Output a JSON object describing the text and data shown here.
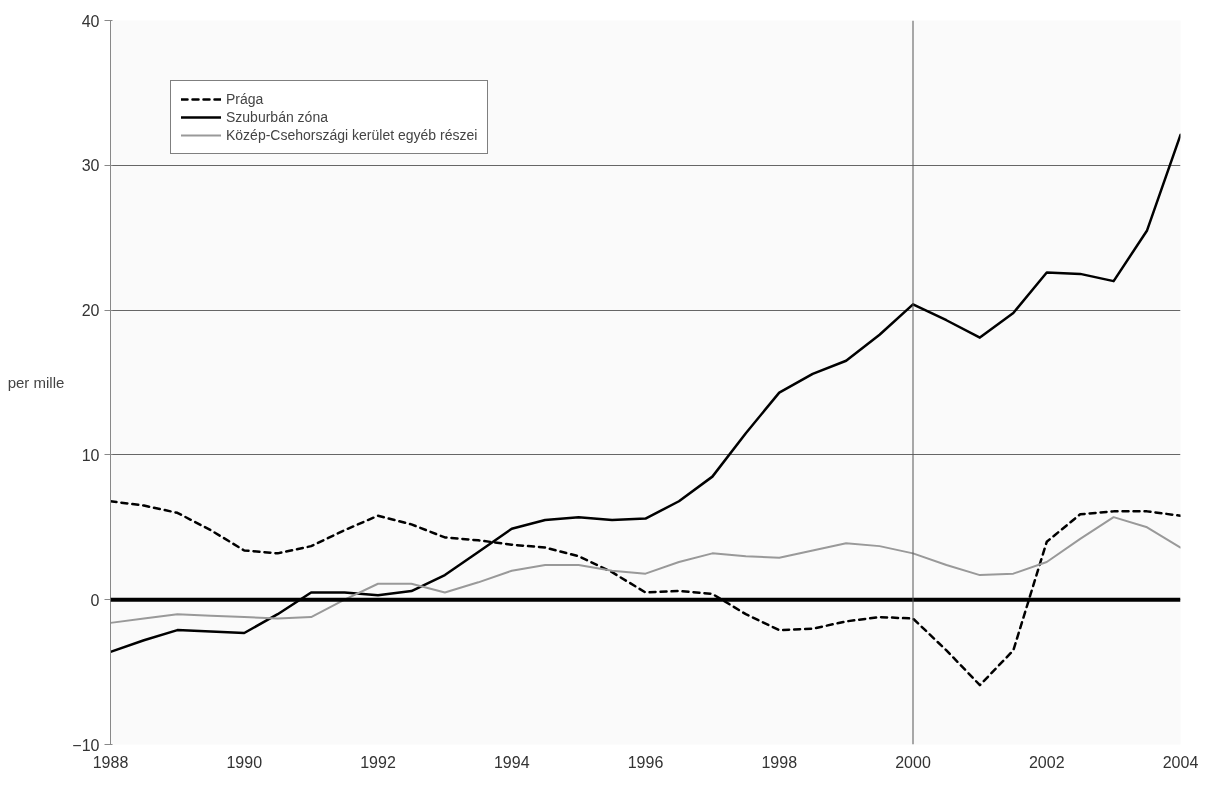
{
  "chart_data": {
    "type": "line",
    "ylabel": "per mille",
    "x": [
      1988,
      1988.5,
      1989,
      1989.5,
      1990,
      1990.5,
      1991,
      1991.5,
      1992,
      1992.5,
      1993,
      1993.5,
      1994,
      1994.5,
      1995,
      1995.5,
      1996,
      1996.5,
      1997,
      1997.5,
      1998,
      1998.5,
      1999,
      1999.5,
      2000,
      2000.5,
      2001,
      2001.5,
      2002,
      2002.5,
      2003,
      2003.5,
      2004
    ],
    "series": [
      {
        "name": "Prága",
        "color": "#000000",
        "line_style": "dashed",
        "values": [
          6.8,
          6.5,
          6.0,
          4.8,
          3.4,
          3.2,
          3.7,
          4.8,
          5.8,
          5.2,
          4.3,
          4.1,
          3.8,
          3.6,
          3.0,
          1.9,
          0.5,
          0.6,
          0.4,
          -1.0,
          -2.1,
          -2.0,
          -1.5,
          -1.2,
          -1.3,
          -3.5,
          -5.9,
          -3.5,
          4.0,
          5.9,
          6.1,
          6.1,
          5.8
        ]
      },
      {
        "name": "Szuburbán zóna",
        "color": "#000000",
        "line_style": "solid",
        "values": [
          -3.6,
          -2.8,
          -2.1,
          -2.2,
          -2.3,
          -1.0,
          0.5,
          0.5,
          0.3,
          0.6,
          1.7,
          3.3,
          4.9,
          5.5,
          5.7,
          5.5,
          5.6,
          6.8,
          8.5,
          11.5,
          14.3,
          15.6,
          16.5,
          18.3,
          20.4,
          19.3,
          18.1,
          19.8,
          22.6,
          22.5,
          22.0,
          25.5,
          32.1
        ]
      },
      {
        "name": "Közép-Csehországi kerület egyéb részei",
        "color": "#999999",
        "line_style": "solid",
        "values": [
          -1.6,
          -1.3,
          -1.0,
          -1.1,
          -1.2,
          -1.3,
          -1.2,
          0.0,
          1.1,
          1.1,
          0.5,
          1.2,
          2.0,
          2.4,
          2.4,
          2.0,
          1.8,
          2.6,
          3.2,
          3.0,
          2.9,
          3.4,
          3.9,
          3.7,
          3.2,
          2.4,
          1.7,
          1.8,
          2.6,
          4.2,
          5.7,
          5.0,
          3.6
        ]
      }
    ],
    "xlim": [
      1988,
      2004
    ],
    "xticks": [
      1988,
      1990,
      1992,
      1994,
      1996,
      1998,
      2000,
      2002,
      2004
    ],
    "ylim": [
      -10,
      40
    ],
    "yticks": [
      -10,
      0,
      10,
      20,
      30,
      40
    ],
    "ref_lines": [
      {
        "axis": "y",
        "value": 0,
        "color": "#000000"
      },
      {
        "axis": "x",
        "value": 2000,
        "color": "#555555"
      }
    ],
    "grid": "y",
    "legend": "top left",
    "marker": "none"
  }
}
